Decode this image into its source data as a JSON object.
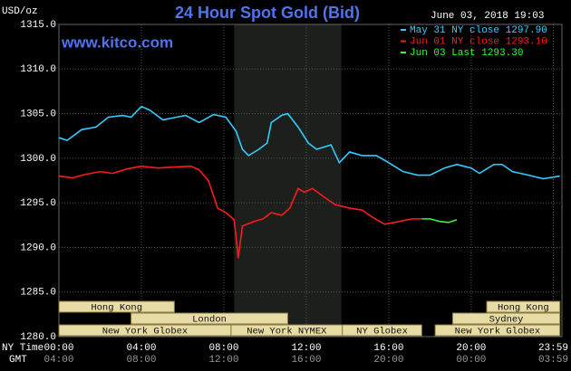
{
  "chart_data": {
    "type": "line",
    "title": "24 Hour Spot Gold (Bid)",
    "source": "www.kitco.com",
    "timestamp": "June 03, 2018 19:03",
    "y_unit": "USD/oz",
    "x_label": "NY Time",
    "x2_label": "GMT",
    "xlim": [
      0,
      24.4
    ],
    "xticks": [
      {
        "value": 0,
        "label": "00:00"
      },
      {
        "value": 4,
        "label": "04:00"
      },
      {
        "value": 8,
        "label": "08:00"
      },
      {
        "value": 12,
        "label": "12:00"
      },
      {
        "value": 16,
        "label": "16:00"
      },
      {
        "value": 20,
        "label": "20:00"
      },
      {
        "value": 23.98,
        "label": "23:59"
      }
    ],
    "x2ticks": [
      {
        "value": 0,
        "label": "04:00"
      },
      {
        "value": 4,
        "label": "08:00"
      },
      {
        "value": 8,
        "label": "12:00"
      },
      {
        "value": 12,
        "label": "16:00"
      },
      {
        "value": 16,
        "label": "20:00"
      },
      {
        "value": 20,
        "label": "00:00"
      },
      {
        "value": 23.98,
        "label": "03:59"
      }
    ],
    "ylim": [
      1280,
      1315
    ],
    "yticks": [
      {
        "value": 1280,
        "label": "1280.0"
      },
      {
        "value": 1285,
        "label": "1285.0"
      },
      {
        "value": 1290,
        "label": "1290.0"
      },
      {
        "value": 1295,
        "label": "1295.0"
      },
      {
        "value": 1300,
        "label": "1300.0"
      },
      {
        "value": 1305,
        "label": "1305.0"
      },
      {
        "value": 1310,
        "label": "1310.0"
      },
      {
        "value": 1315,
        "label": "1315.0"
      }
    ],
    "grid": true,
    "shaded_range": [
      8.5,
      13.7
    ],
    "series": [
      {
        "name": "May 31 NY close 1297.90",
        "color": "#33ccff",
        "x": [
          0,
          0.4,
          1.1,
          1.8,
          2.4,
          3.1,
          3.5,
          4.0,
          4.4,
          5.05,
          5.7,
          6.15,
          6.8,
          7.5,
          8.1,
          8.6,
          8.9,
          9.2,
          9.7,
          10.1,
          10.3,
          10.8,
          11.1,
          11.6,
          12.1,
          12.5,
          13.2,
          13.6,
          14.1,
          14.7,
          15.4,
          16.0,
          16.7,
          17.4,
          18.0,
          18.7,
          19.3,
          20.0,
          20.4,
          21.1,
          21.5,
          22.0,
          22.6,
          23.5,
          24.3
        ],
        "values": [
          1302.3,
          1302.0,
          1303.2,
          1303.5,
          1304.6,
          1304.8,
          1304.6,
          1305.8,
          1305.4,
          1304.3,
          1304.6,
          1304.8,
          1304.0,
          1304.9,
          1304.6,
          1303.0,
          1301.0,
          1300.3,
          1301.0,
          1301.7,
          1304.0,
          1304.8,
          1305.0,
          1303.5,
          1301.7,
          1301.0,
          1301.5,
          1299.5,
          1300.7,
          1300.3,
          1300.3,
          1299.5,
          1298.5,
          1298.1,
          1298.1,
          1298.9,
          1299.3,
          1298.9,
          1298.3,
          1299.3,
          1299.3,
          1298.5,
          1298.2,
          1297.7,
          1298.0
        ]
      },
      {
        "name": "Jun 01 NY close 1293.10",
        "color": "#ff1a1a",
        "x": [
          0,
          0.65,
          1.3,
          2.0,
          2.6,
          3.3,
          4.0,
          4.8,
          5.5,
          6.4,
          6.8,
          7.25,
          7.7,
          8.1,
          8.5,
          8.7,
          8.9,
          9.45,
          9.9,
          10.3,
          10.8,
          11.2,
          11.6,
          11.9,
          12.3,
          12.9,
          13.4,
          14.1,
          14.7,
          15.2,
          15.8,
          16.5,
          17.1,
          17.6
        ],
        "values": [
          1298.0,
          1297.8,
          1298.2,
          1298.5,
          1298.3,
          1298.8,
          1299.1,
          1298.9,
          1299.0,
          1299.1,
          1298.7,
          1297.5,
          1294.4,
          1293.9,
          1293.1,
          1288.8,
          1292.4,
          1292.9,
          1293.2,
          1293.9,
          1293.6,
          1294.4,
          1296.6,
          1296.2,
          1296.6,
          1295.6,
          1294.8,
          1294.4,
          1294.2,
          1293.4,
          1292.6,
          1292.9,
          1293.2,
          1293.2
        ]
      },
      {
        "name": "Jun 03 Last 1293.30",
        "color": "#33ff33",
        "x": [
          17.6,
          18.0,
          18.5,
          18.9,
          19.3
        ],
        "values": [
          1293.2,
          1293.2,
          1292.9,
          1292.8,
          1293.1
        ]
      }
    ],
    "sessions": [
      {
        "label": "Hong Kong",
        "start": 0,
        "end": 5.6
      },
      {
        "label": "London",
        "start": 3.5,
        "end": 11.1
      },
      {
        "label": "New York Globex",
        "start": 0,
        "end": 8.35
      },
      {
        "label": "New York NYMEX",
        "start": 8.35,
        "end": 13.75
      },
      {
        "label": "NY Globex",
        "start": 13.75,
        "end": 17.6
      },
      {
        "label": "Hong Kong",
        "start": 20.75,
        "end": 24.3
      },
      {
        "label": "Sydney",
        "start": 19.1,
        "end": 24.3
      },
      {
        "label": "New York Globex",
        "start": 18.25,
        "end": 24.3
      }
    ]
  }
}
